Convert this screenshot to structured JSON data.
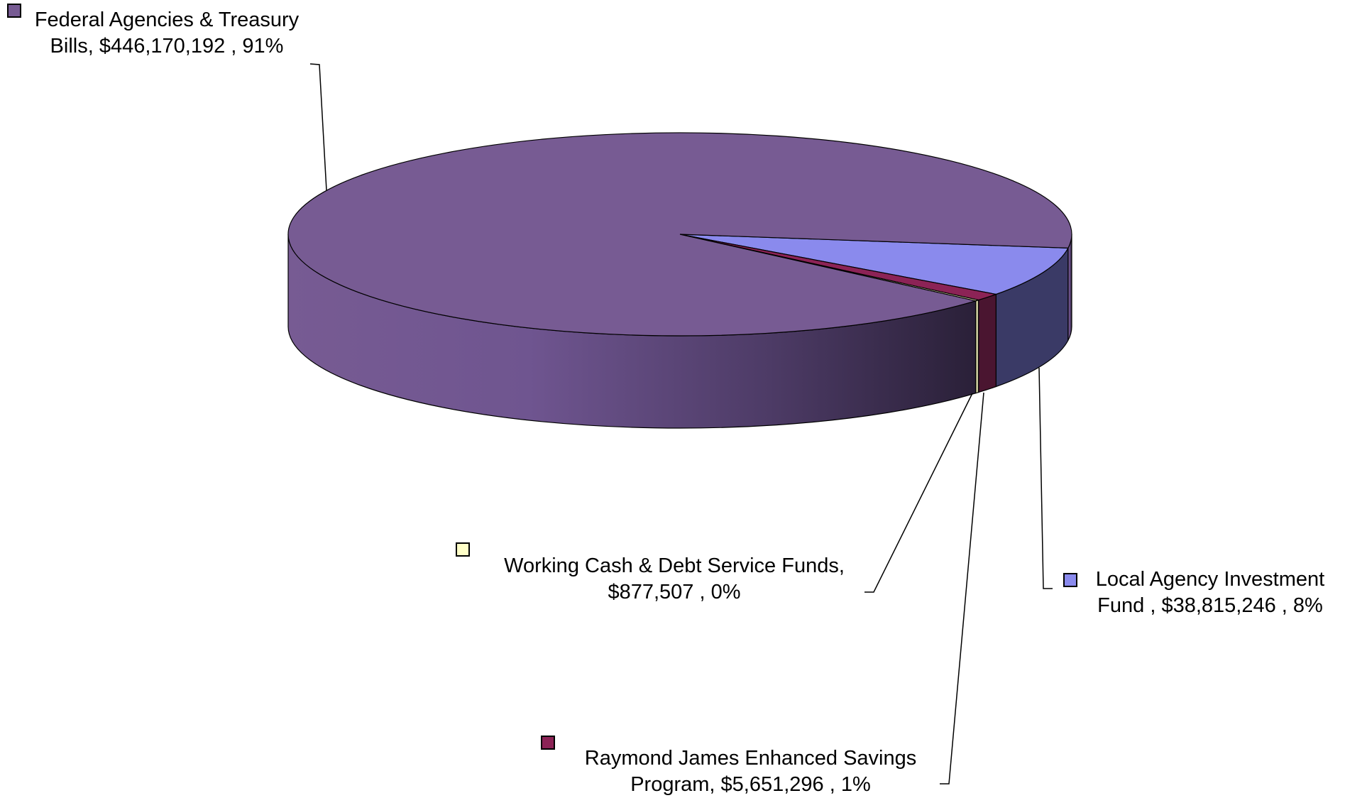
{
  "chart_data": {
    "type": "pie",
    "style": "3d-exploded-none",
    "title": "",
    "slices": [
      {
        "name": "Federal Agencies & Treasury Bills",
        "value": 446170192,
        "percent": 91,
        "color": "#775b93",
        "label_lines": [
          "Federal Agencies & Treasury",
          "Bills, $446,170,192 , 91%"
        ]
      },
      {
        "name": "Local Agency Investment Fund",
        "value": 38815246,
        "percent": 8,
        "color": "#8a8aed",
        "label_lines": [
          "Local Agency Investment",
          "Fund , $38,815,246 , 8%"
        ]
      },
      {
        "name": "Raymond James Enhanced Savings Program",
        "value": 5651296,
        "percent": 1,
        "color": "#8c2356",
        "label_lines": [
          "Raymond James Enhanced Savings",
          "Program, $5,651,296 , 1%"
        ]
      },
      {
        "name": "Working Cash & Debt Service Funds",
        "value": 877507,
        "percent": 0,
        "color": "#ffffc8",
        "label_lines": [
          "Working Cash & Debt Service Funds,",
          "$877,507 , 0%"
        ]
      }
    ]
  }
}
